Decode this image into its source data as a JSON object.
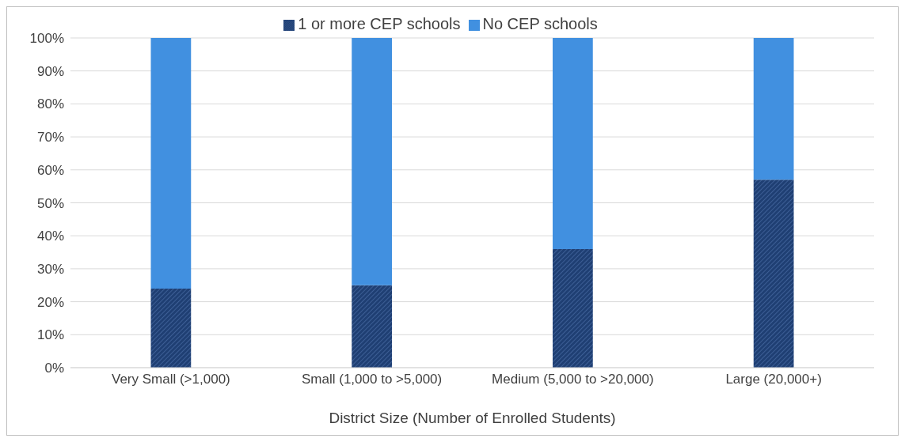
{
  "chart_data": {
    "type": "bar",
    "stacked": true,
    "xlabel": "District Size (Number of Enrolled Students)",
    "categories": [
      "Very Small (>1,000)",
      "Small (1,000 to >5,000)",
      "Medium (5,000 to >20,000)",
      "Large (20,000+)"
    ],
    "series": [
      {
        "name": "1 or more CEP schools",
        "color": "#1f3f73",
        "values": [
          24,
          25,
          36,
          57
        ]
      },
      {
        "name": "No CEP schools",
        "color": "#4190e0",
        "values": [
          76,
          75,
          64,
          43
        ]
      }
    ],
    "ylim": [
      0,
      100
    ],
    "yticks": [
      {
        "value": 0,
        "label": "0%"
      },
      {
        "value": 10,
        "label": "10%"
      },
      {
        "value": 20,
        "label": "20%"
      },
      {
        "value": 30,
        "label": "30%"
      },
      {
        "value": 40,
        "label": "40%"
      },
      {
        "value": 50,
        "label": "50%"
      },
      {
        "value": 60,
        "label": "60%"
      },
      {
        "value": 70,
        "label": "70%"
      },
      {
        "value": 80,
        "label": "80%"
      },
      {
        "value": 90,
        "label": "90%"
      },
      {
        "value": 100,
        "label": "100%"
      }
    ],
    "grid": "y",
    "legend": "top"
  }
}
